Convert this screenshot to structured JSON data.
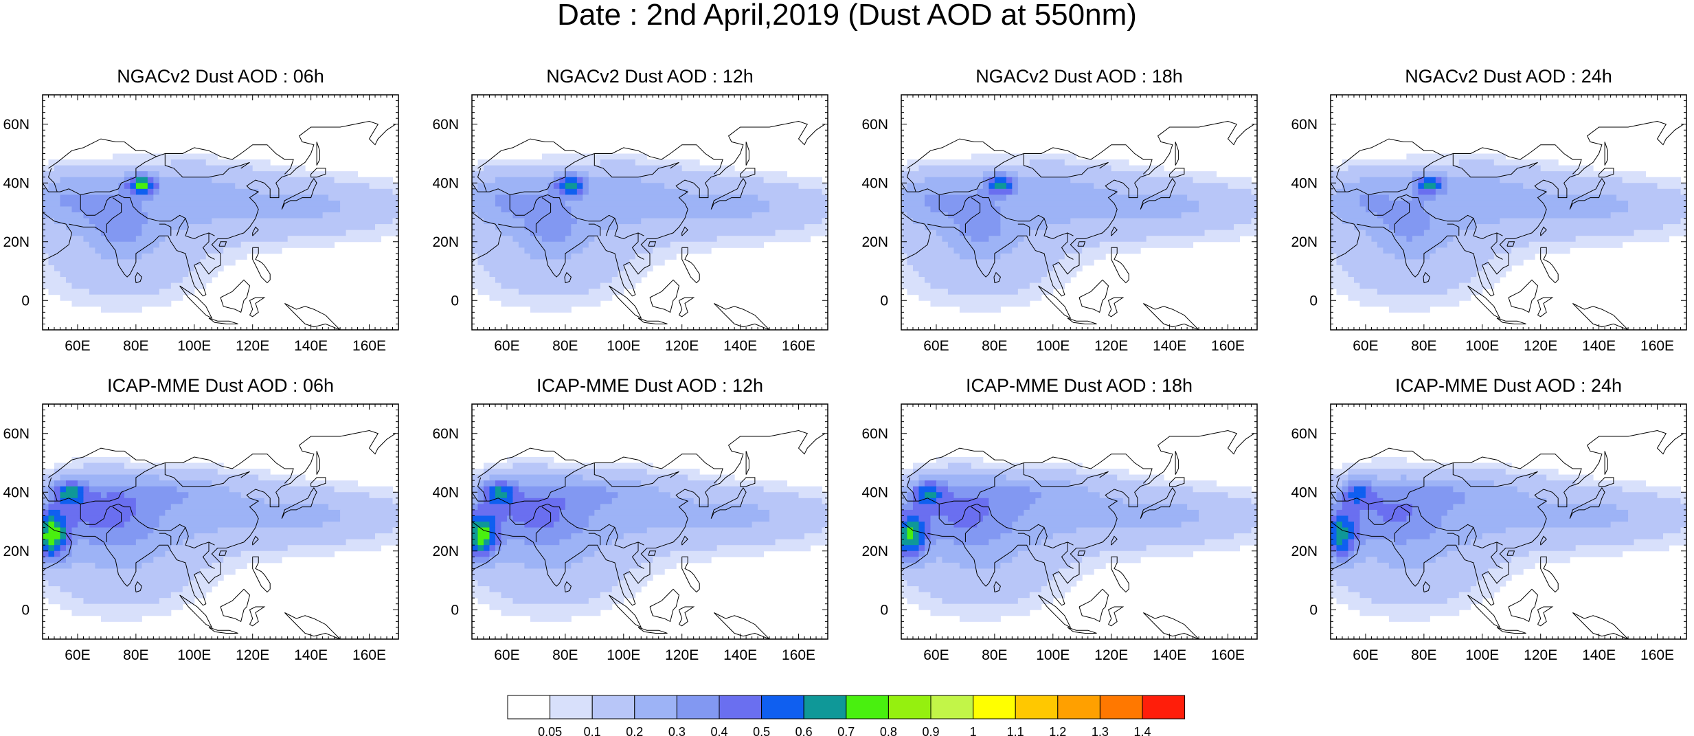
{
  "title": "Date : 2nd April,2019 (Dust AOD at 550nm)",
  "panels": [
    {
      "title": "NGACv2 Dust AOD : 06h",
      "model": "NGACv2",
      "lead": "06h"
    },
    {
      "title": "NGACv2 Dust AOD : 12h",
      "model": "NGACv2",
      "lead": "12h"
    },
    {
      "title": "NGACv2 Dust AOD : 18h",
      "model": "NGACv2",
      "lead": "18h"
    },
    {
      "title": "NGACv2 Dust AOD : 24h",
      "model": "NGACv2",
      "lead": "24h"
    },
    {
      "title": "ICAP-MME Dust AOD : 06h",
      "model": "ICAP-MME",
      "lead": "06h"
    },
    {
      "title": "ICAP-MME Dust AOD : 12h",
      "model": "ICAP-MME",
      "lead": "12h"
    },
    {
      "title": "ICAP-MME Dust AOD : 18h",
      "model": "ICAP-MME",
      "lead": "18h"
    },
    {
      "title": "ICAP-MME Dust AOD : 24h",
      "model": "ICAP-MME",
      "lead": "24h"
    }
  ],
  "map_extent": {
    "lon": [
      48,
      170
    ],
    "lat": [
      -10,
      70
    ]
  },
  "lon_ticks": [
    {
      "v": 60,
      "label": "60E"
    },
    {
      "v": 80,
      "label": "80E"
    },
    {
      "v": 100,
      "label": "100E"
    },
    {
      "v": 120,
      "label": "120E"
    },
    {
      "v": 140,
      "label": "140E"
    },
    {
      "v": 160,
      "label": "160E"
    }
  ],
  "lat_ticks": [
    {
      "v": 60,
      "label": "60N"
    },
    {
      "v": 40,
      "label": "40N"
    },
    {
      "v": 20,
      "label": "20N"
    },
    {
      "v": 0,
      "label": "0"
    }
  ],
  "colorbar": {
    "colors": [
      "#ffffff",
      "#d8e0fb",
      "#b8c6f8",
      "#9db3f6",
      "#8298f2",
      "#6a6ff0",
      "#0f5ff0",
      "#0f9898",
      "#49f00f",
      "#95f00f",
      "#c2f548",
      "#ffff00",
      "#ffc800",
      "#ffa000",
      "#ff7800",
      "#ff1e0a"
    ],
    "labels": [
      "0.05",
      "0.1",
      "0.2",
      "0.3",
      "0.4",
      "0.5",
      "0.6",
      "0.7",
      "0.8",
      "0.9",
      "1",
      "1.1",
      "1.2",
      "1.3",
      "1.4"
    ]
  }
}
